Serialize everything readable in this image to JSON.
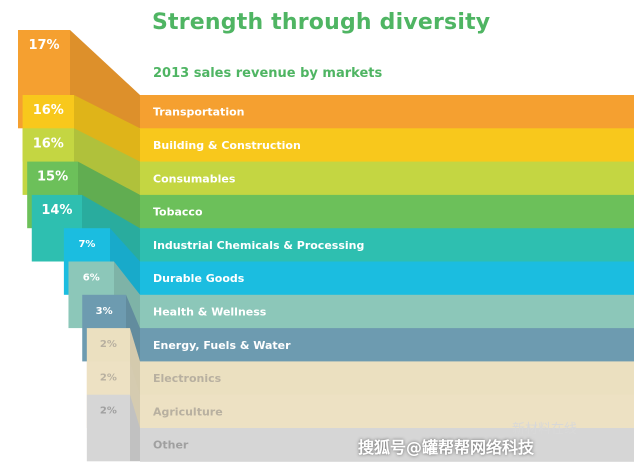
{
  "chart_data": {
    "type": "bar",
    "title": "Strength through diversity",
    "subtitle": "2013 sales revenue by markets",
    "unit": "%",
    "categories": [
      "Transportation",
      "Building & Construction",
      "Consumables",
      "Tobacco",
      "Industrial Chemicals & Processing",
      "Durable Goods",
      "Health & Wellness",
      "Energy, Fuels & Water",
      "Electronics",
      "Agriculture",
      "Other"
    ],
    "values": [
      17,
      16,
      16,
      15,
      14,
      7,
      6,
      3,
      2,
      2,
      2
    ],
    "labels": [
      "17%",
      "16%",
      "16%",
      "15%",
      "14%",
      "7%",
      "6%",
      "3%",
      "2%",
      "2%",
      "2%"
    ],
    "colors": [
      "#f5a030",
      "#f8c81c",
      "#c4d642",
      "#6cc05a",
      "#2ebfb0",
      "#1bbde0",
      "#8cc7b9",
      "#6d9bb0",
      "#ebe0c0",
      "#ede1c3",
      "#d6d6d6"
    ],
    "label_colors": [
      "#ffffff",
      "#ffffff",
      "#ffffff",
      "#ffffff",
      "#ffffff",
      "#ffffff",
      "#ffffff",
      "#ffffff",
      "#b8b0a0",
      "#b8b0a0",
      "#a0a0a0"
    ]
  },
  "watermark": {
    "source": "新材料在线",
    "credit": "搜狐号@罐帮帮网络科技"
  }
}
